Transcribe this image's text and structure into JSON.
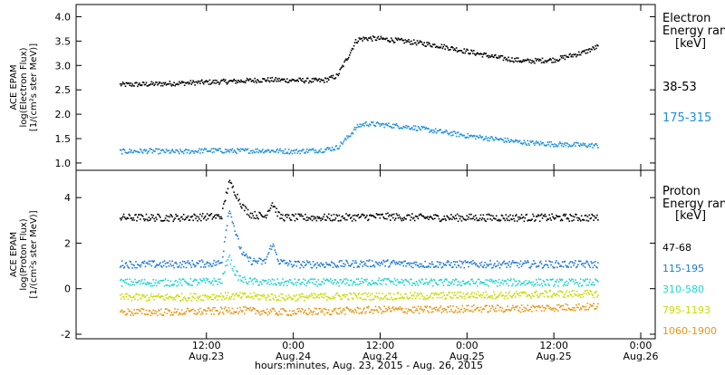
{
  "x_axis": {
    "title": "hours:minutes, Aug. 23, 2015 - Aug. 26, 2015",
    "ticks": [
      {
        "hour": 12,
        "time": "12:00",
        "date": "Aug.23"
      },
      {
        "hour": 24,
        "time": "0:00",
        "date": "Aug.24"
      },
      {
        "hour": 36,
        "time": "12:00",
        "date": "Aug.24"
      },
      {
        "hour": 48,
        "time": "0:00",
        "date": "Aug.25"
      },
      {
        "hour": 60,
        "time": "12:00",
        "date": "Aug.25"
      },
      {
        "hour": 72,
        "time": "0:00",
        "date": "Aug.26"
      }
    ]
  },
  "chart_data": [
    {
      "type": "scatter",
      "ylabel_lines": [
        "ACE EPAM",
        "log(Electron Flux)",
        "[1/(cm²s ster MeV)]"
      ],
      "ylim": [
        0.85,
        4.25
      ],
      "yticks": [
        1.0,
        1.5,
        2.0,
        2.5,
        3.0,
        3.5,
        4.0
      ],
      "ytick_labels": [
        "1.0",
        "1.5",
        "2.0",
        "2.5",
        "3.0",
        "3.5",
        "4.0"
      ],
      "legend_title_lines": [
        "Electron",
        "Energy ran",
        "[keV]"
      ],
      "x_units": "hours since Aug. 23, 2015 00:00",
      "series": [
        {
          "name": "38-53",
          "color": "#000000",
          "x": [
            0,
            4,
            8,
            12,
            16,
            20,
            24,
            28,
            30,
            31.5,
            32.5,
            33,
            34,
            36,
            40,
            44,
            48,
            52,
            56,
            60,
            64,
            66
          ],
          "y": [
            2.62,
            2.63,
            2.65,
            2.67,
            2.69,
            2.72,
            2.71,
            2.7,
            2.8,
            3.2,
            3.5,
            3.55,
            3.57,
            3.56,
            3.5,
            3.42,
            3.3,
            3.18,
            3.1,
            3.13,
            3.28,
            3.4
          ]
        },
        {
          "name": "175-315",
          "color": "#1e90dc",
          "x": [
            0,
            4,
            8,
            12,
            16,
            20,
            24,
            28,
            30,
            31.5,
            32.5,
            33,
            34,
            36,
            40,
            44,
            48,
            52,
            56,
            60,
            64,
            66
          ],
          "y": [
            1.25,
            1.26,
            1.24,
            1.27,
            1.26,
            1.27,
            1.25,
            1.28,
            1.33,
            1.55,
            1.72,
            1.78,
            1.82,
            1.8,
            1.75,
            1.66,
            1.57,
            1.5,
            1.43,
            1.4,
            1.38,
            1.37
          ]
        }
      ]
    },
    {
      "type": "scatter",
      "ylabel_lines": [
        "ACE EPAM",
        "log(Proton Flux)",
        "[1/(cm²s ster MeV)]"
      ],
      "ylim": [
        -2.2,
        5.2
      ],
      "yticks": [
        -2,
        0,
        2,
        4
      ],
      "ytick_labels": [
        "-2",
        "0",
        "2",
        "4"
      ],
      "legend_title_lines": [
        "Proton",
        "Energy ran",
        "[keV]"
      ],
      "x_units": "hours since Aug. 23, 2015 00:00",
      "series": [
        {
          "name": "47-68",
          "color": "#000000",
          "x": [
            0,
            8,
            14,
            15,
            15.5,
            16,
            16.5,
            17,
            18,
            20,
            21,
            22,
            23,
            24,
            30,
            36,
            42,
            48,
            54,
            60,
            66
          ],
          "y": [
            3.15,
            3.15,
            3.2,
            4.7,
            4.5,
            4.2,
            3.9,
            3.6,
            3.3,
            3.2,
            3.8,
            3.2,
            3.15,
            3.15,
            3.15,
            3.2,
            3.15,
            3.15,
            3.15,
            3.15,
            3.15
          ]
        },
        {
          "name": "115-195",
          "color": "#1e78d2",
          "x": [
            0,
            8,
            14,
            15,
            15.5,
            16,
            16.5,
            17,
            18,
            20,
            21,
            22,
            23,
            24,
            30,
            36,
            42,
            48,
            54,
            60,
            66
          ],
          "y": [
            1.1,
            1.1,
            1.15,
            3.5,
            3.1,
            2.4,
            1.9,
            1.5,
            1.25,
            1.2,
            2.0,
            1.2,
            1.15,
            1.1,
            1.1,
            1.15,
            1.1,
            1.1,
            1.1,
            1.1,
            1.1
          ]
        },
        {
          "name": "310-580",
          "color": "#20d2d2",
          "x": [
            0,
            8,
            14,
            15,
            15.5,
            16,
            16.5,
            17,
            18,
            20,
            22,
            24,
            30,
            36,
            42,
            48,
            54,
            60,
            66
          ],
          "y": [
            0.3,
            0.3,
            0.35,
            1.5,
            1.0,
            0.7,
            0.5,
            0.4,
            0.35,
            0.3,
            0.3,
            0.3,
            0.3,
            0.35,
            0.3,
            0.3,
            0.3,
            0.3,
            0.3
          ]
        },
        {
          "name": "795-1193",
          "color": "#c8dc00",
          "x": [
            0,
            8,
            14,
            16,
            18,
            22,
            24,
            30,
            36,
            42,
            48,
            54,
            60,
            66
          ],
          "y": [
            -0.35,
            -0.35,
            -0.3,
            -0.3,
            -0.3,
            -0.35,
            -0.35,
            -0.3,
            -0.3,
            -0.3,
            -0.25,
            -0.25,
            -0.2,
            -0.2
          ]
        },
        {
          "name": "1060-1900",
          "color": "#e69614",
          "x": [
            0,
            8,
            14,
            16,
            18,
            22,
            24,
            30,
            36,
            42,
            48,
            54,
            60,
            66
          ],
          "y": [
            -1.0,
            -1.0,
            -0.95,
            -0.9,
            -0.95,
            -1.0,
            -1.0,
            -0.95,
            -0.9,
            -0.9,
            -0.85,
            -0.85,
            -0.8,
            -0.75
          ]
        }
      ]
    }
  ]
}
